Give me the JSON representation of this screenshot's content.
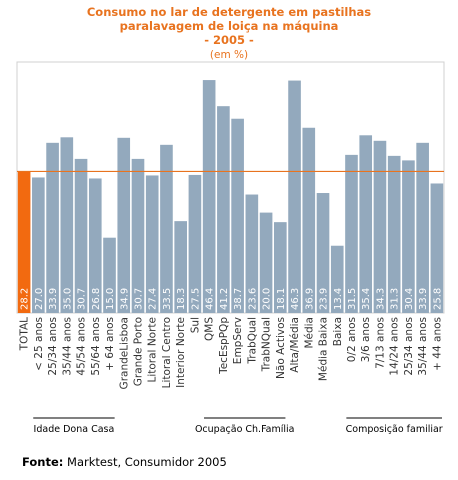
{
  "chart_data": {
    "type": "bar",
    "title_lines": [
      "Consumo no lar de detergente em pastilhas",
      "paralavagem de loiça na máquina",
      "- 2005 -"
    ],
    "unit": "(em %)",
    "categories": [
      "TOTAL",
      "< 25 anos",
      "25/34 anos",
      "35/44 anos",
      "45/54 anos",
      "55/64 anos",
      "+ 64 anos",
      "GrandeLisboa",
      "Grande Porto",
      "Litoral Norte",
      "Litoral Centro",
      "Interior Norte",
      "Sul",
      "QMS",
      "TecEspPQp",
      "EmpServ",
      "TrabQual",
      "TrabNQual",
      "Não Activos",
      "Alta/Média",
      "Média",
      "Média Baixa",
      "Baixa",
      "0/2 anos",
      "3/6 anos",
      "7/13 anos",
      "14/24 anos",
      "25/34 anos",
      "35/44 anos",
      "+ 44 anos"
    ],
    "values": [
      28.2,
      27.0,
      33.9,
      35.0,
      30.7,
      26.8,
      15.0,
      34.9,
      30.7,
      27.4,
      33.5,
      18.3,
      27.5,
      46.4,
      41.2,
      38.7,
      23.6,
      20.0,
      18.1,
      46.3,
      36.9,
      23.9,
      13.4,
      31.5,
      35.4,
      34.3,
      31.3,
      30.4,
      33.9,
      25.8
    ],
    "value_labels": [
      "28.2",
      "27.0",
      "33.9",
      "35.0",
      "30.7",
      "26.8",
      "15.0",
      "34.9",
      "30.7",
      "27.4",
      "33.5",
      "18.3",
      "27.5",
      "46.4",
      "41.2",
      "38.7",
      "23.6",
      "20.0",
      "18.1",
      "46.3",
      "36.9",
      "23.9",
      "13.4",
      "31.5",
      "35.4",
      "34.3",
      "31.3",
      "30.4",
      "33.9",
      "25.8"
    ],
    "highlight_index": 0,
    "reference_value": 28.2,
    "ylim": [
      0,
      50
    ],
    "groups": [
      {
        "label": "Idade Dona Casa",
        "start": 1,
        "end": 6
      },
      {
        "label": "Ocupação Ch.Família",
        "start": 13,
        "end": 18
      },
      {
        "label": "Composição familiar",
        "start": 23,
        "end": 29
      }
    ],
    "colors": {
      "bar": "#93a9bd",
      "highlight": "#f26a10",
      "reference_line": "#e8731f",
      "title": "#e8731f",
      "plot_bg": "#ffffff",
      "plot_border": "#d0d0d0"
    }
  },
  "source": {
    "label": "Fonte:",
    "text": "Marktest, Consumidor 2005"
  }
}
